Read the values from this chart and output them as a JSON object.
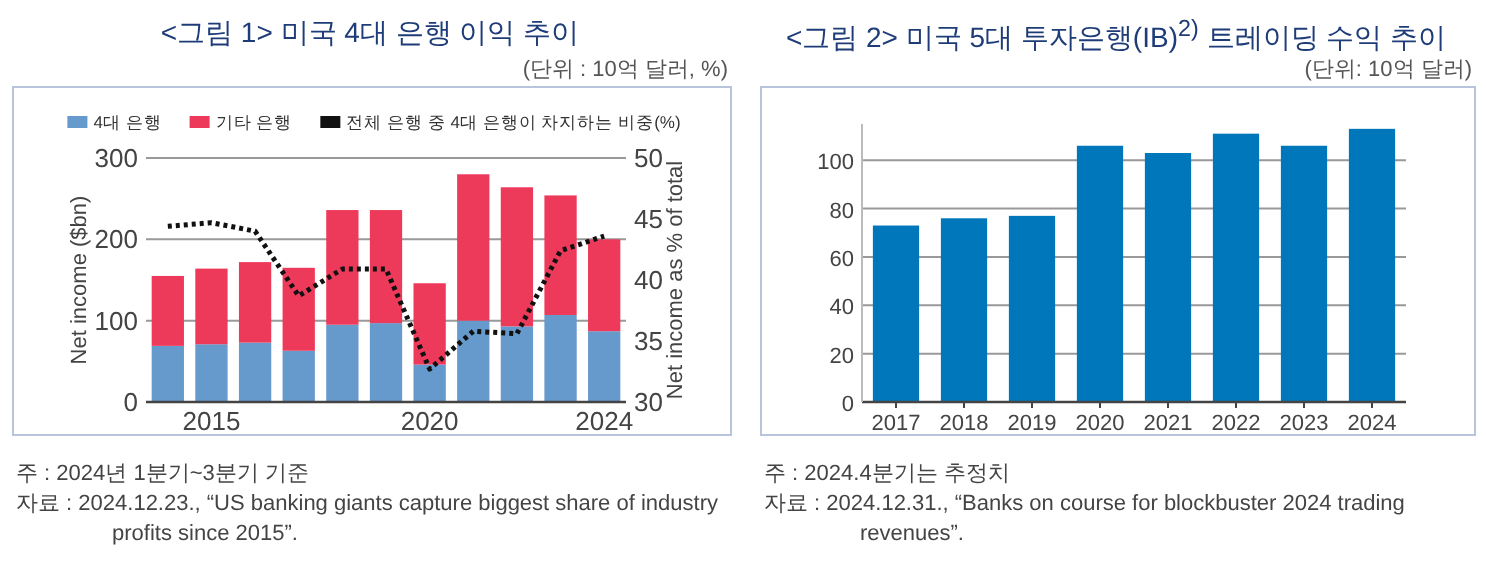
{
  "chart_data": [
    {
      "type": "bar",
      "title": "<그림 1> 미국 4대 은행 이익 추이",
      "subtitle": "(단위 : 10억 달러, %)",
      "ylabel": "Net income ($bn)",
      "y2label": "Net income as % of total",
      "x": [
        2014,
        2015,
        2016,
        2017,
        2018,
        2019,
        2020,
        2021,
        2022,
        2023,
        2024
      ],
      "xlim": [
        2013.5,
        2024.5
      ],
      "xticks": [
        2015,
        2020,
        2024
      ],
      "ylim": [
        0,
        300
      ],
      "yticks": [
        0,
        100,
        200,
        300
      ],
      "y2lim": [
        30,
        50
      ],
      "y2ticks": [
        30,
        35,
        40,
        45,
        50
      ],
      "stacked": true,
      "grid": "y",
      "legend": "top",
      "series": [
        {
          "name": "4대 은행",
          "color": "#6699cc",
          "values": [
            69,
            71,
            73,
            63,
            95,
            97,
            46,
            100,
            93,
            107,
            87
          ]
        },
        {
          "name": "기타 은행",
          "color": "#ee3a5a",
          "values": [
            86,
            93,
            99,
            102,
            141,
            139,
            100,
            180,
            171,
            147,
            113
          ]
        },
        {
          "name": "전체 은행 중 4대 은행이 차지하는 비중(%)",
          "type": "line",
          "axis": "y2",
          "line_style": "dotted",
          "color": "#111111",
          "values": [
            44.4,
            44.7,
            44.0,
            38.7,
            40.9,
            40.9,
            32.7,
            35.8,
            35.6,
            42.4,
            43.6
          ]
        }
      ],
      "annotations": [
        "주 : 2024년 1분기~3분기 기준",
        "자료 : 2024.12.23., “US banking giants capture biggest share of industry profits since 2015”."
      ]
    },
    {
      "type": "bar",
      "title": "<그림 2> 미국 5대 투자은행(IB)$^{2)}$ 트레이딩 수익 추이",
      "subtitle": "(단위: 10억 달러)",
      "categories": [
        "2017",
        "2018",
        "2019",
        "2020",
        "2021",
        "2022",
        "2023",
        "2024"
      ],
      "ylim": [
        0,
        115
      ],
      "yticks": [
        0,
        20,
        40,
        60,
        80,
        100
      ],
      "grid": "y",
      "series": [
        {
          "color": "#0077bb",
          "values": [
            73,
            76,
            77,
            106,
            103,
            111,
            106,
            113
          ]
        }
      ],
      "annotations": [
        "주 : 2024.4분기는 추정치",
        "자료 : 2024.12.31., “Banks on course for blockbuster 2024 trading revenues”."
      ]
    }
  ]
}
